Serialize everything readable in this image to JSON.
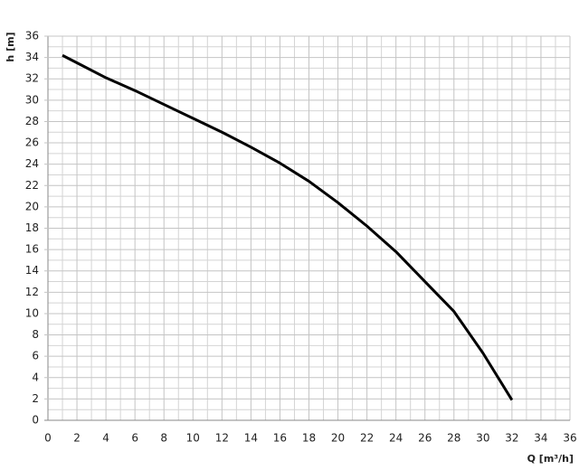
{
  "chart_data": {
    "type": "line",
    "x_label": "Q [m³/h]",
    "y_label": "h [m]",
    "x": [
      1,
      2,
      4,
      6,
      8,
      10,
      12,
      14,
      16,
      18,
      20,
      22,
      24,
      26,
      28,
      30,
      32
    ],
    "series": [
      {
        "color": "#000000",
        "values": [
          34.2,
          33.5,
          32.1,
          30.9,
          29.6,
          28.3,
          27.0,
          25.6,
          24.1,
          22.4,
          20.4,
          18.2,
          15.8,
          13.0,
          10.2,
          6.3,
          1.9
        ]
      }
    ],
    "xlim": [
      0,
      36
    ],
    "ylim": [
      0,
      36
    ],
    "xticks": [
      0,
      2,
      4,
      6,
      8,
      10,
      12,
      14,
      16,
      18,
      20,
      22,
      24,
      26,
      28,
      30,
      32,
      34,
      36
    ],
    "yticks": [
      0,
      2,
      4,
      6,
      8,
      10,
      12,
      14,
      16,
      18,
      20,
      22,
      24,
      26,
      28,
      30,
      32,
      34,
      36
    ],
    "grid": true,
    "minor_grid": true
  }
}
